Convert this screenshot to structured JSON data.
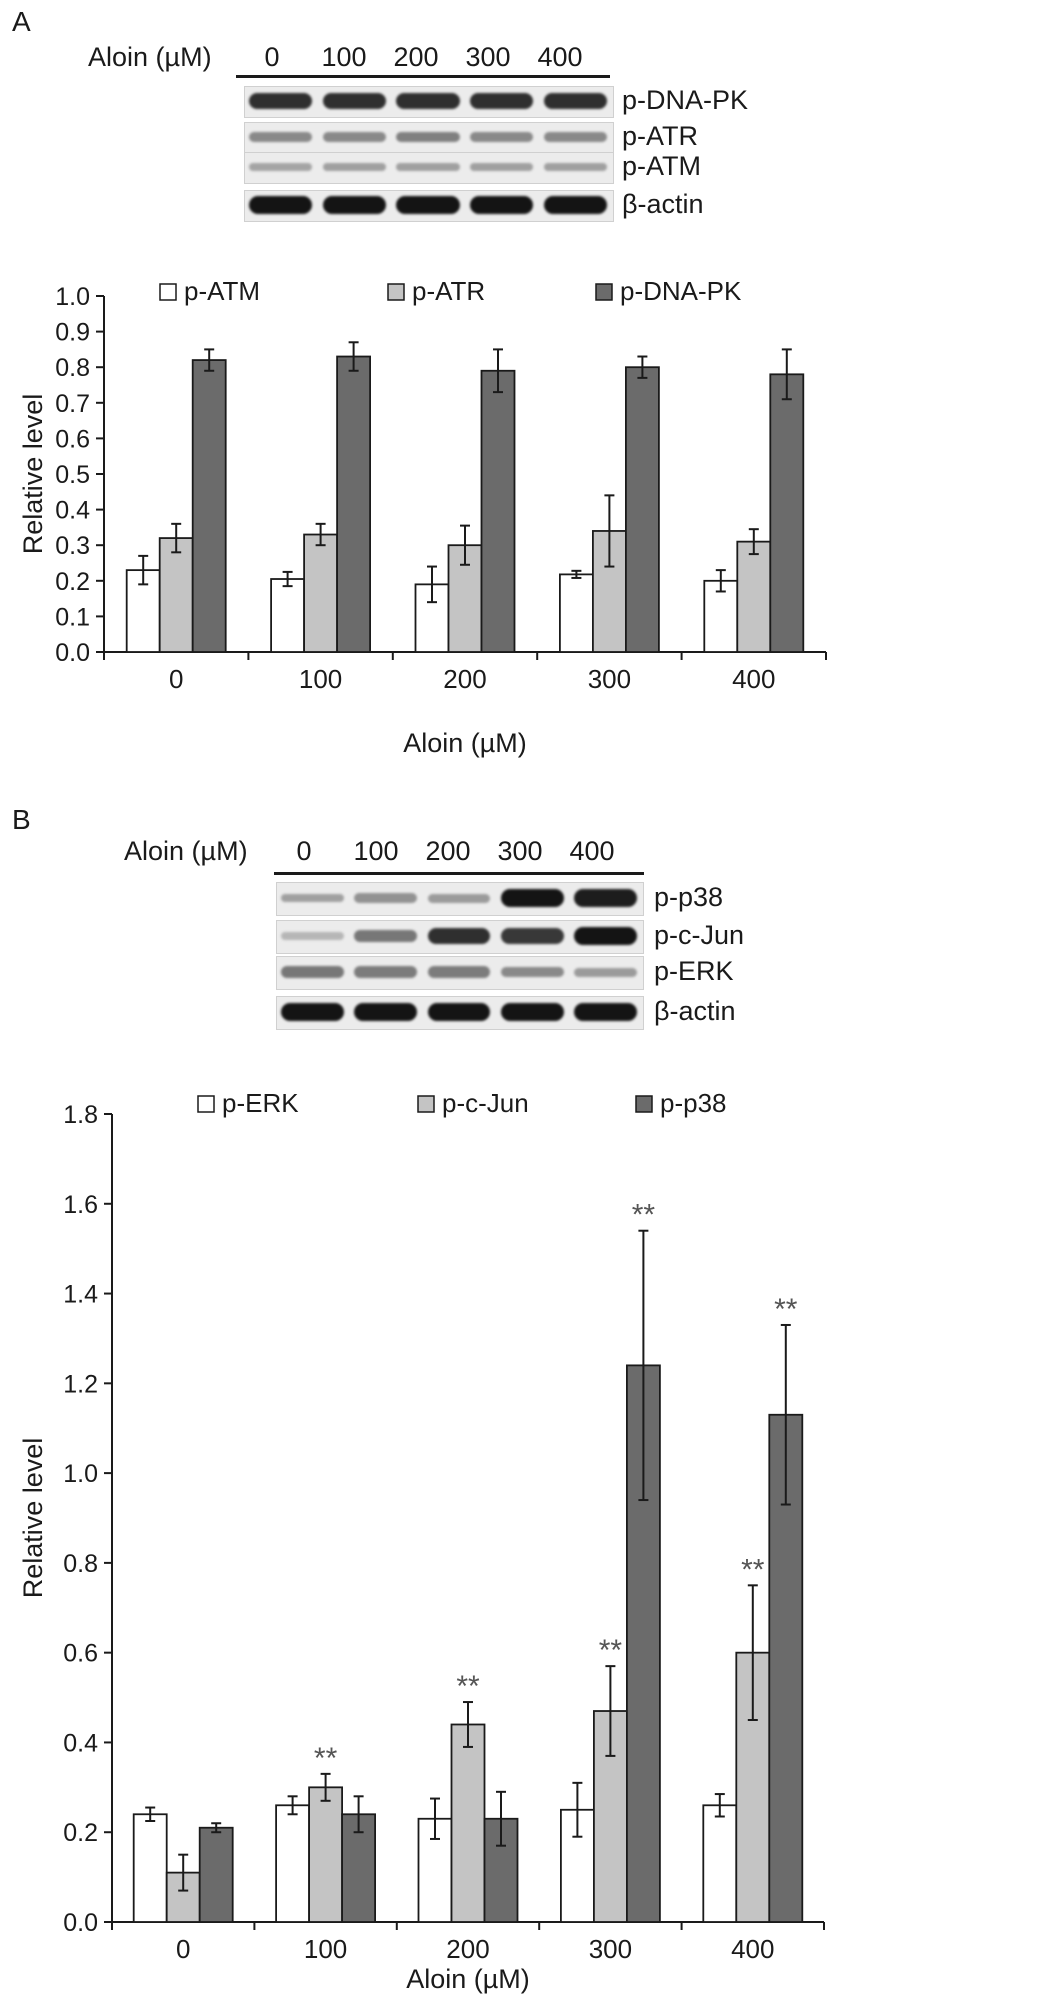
{
  "panels": [
    {
      "label": "A",
      "blot": {
        "title": "Aloin (µM)",
        "concentrations": [
          "0",
          "100",
          "200",
          "300",
          "400"
        ],
        "rows": [
          {
            "protein": "p-DNA-PK",
            "intensities": [
              0.85,
              0.85,
              0.85,
              0.85,
              0.85
            ]
          },
          {
            "protein": "p-ATR",
            "intensities": [
              0.35,
              0.35,
              0.4,
              0.35,
              0.35
            ]
          },
          {
            "protein": "p-ATM",
            "intensities": [
              0.2,
              0.22,
              0.22,
              0.22,
              0.22
            ]
          },
          {
            "protein": "β-actin",
            "intensities": [
              1.0,
              1.0,
              1.0,
              1.0,
              1.0
            ]
          }
        ]
      }
    },
    {
      "label": "B",
      "blot": {
        "title": "Aloin (µM)",
        "concentrations": [
          "0",
          "100",
          "200",
          "300",
          "400"
        ],
        "rows": [
          {
            "protein": "p-p38",
            "intensities": [
              0.22,
              0.3,
              0.25,
              1.0,
              0.95
            ]
          },
          {
            "protein": "p-c-Jun",
            "intensities": [
              0.1,
              0.45,
              0.85,
              0.8,
              1.0
            ]
          },
          {
            "protein": "p-ERK",
            "intensities": [
              0.45,
              0.42,
              0.42,
              0.35,
              0.25
            ]
          },
          {
            "protein": "β-actin",
            "intensities": [
              1.0,
              1.0,
              1.0,
              1.0,
              1.0
            ]
          }
        ]
      }
    }
  ],
  "colors": {
    "white": "#ffffff",
    "lightgray": "#c4c4c4",
    "darkgray": "#6b6b6b",
    "star": "#555555"
  },
  "chart_data": [
    {
      "type": "bar",
      "xlabel": "Aloin (µM)",
      "ylabel": "Relative level",
      "ylim": [
        0,
        1.0
      ],
      "yticks": [
        "0.0",
        "0.1",
        "0.2",
        "0.3",
        "0.4",
        "0.5",
        "0.6",
        "0.7",
        "0.8",
        "0.9",
        "1.0"
      ],
      "categories": [
        "0",
        "100",
        "200",
        "300",
        "400"
      ],
      "legend_position": "top",
      "series": [
        {
          "name": "p-ATM",
          "color": "white",
          "values": [
            0.23,
            0.205,
            0.19,
            0.218,
            0.2
          ],
          "errors": [
            0.04,
            0.02,
            0.05,
            0.01,
            0.03
          ]
        },
        {
          "name": "p-ATR",
          "color": "lightgray",
          "values": [
            0.32,
            0.33,
            0.3,
            0.34,
            0.31
          ],
          "errors": [
            0.04,
            0.03,
            0.055,
            0.1,
            0.035
          ]
        },
        {
          "name": "p-DNA-PK",
          "color": "darkgray",
          "values": [
            0.82,
            0.83,
            0.79,
            0.8,
            0.78
          ],
          "errors": [
            0.03,
            0.04,
            0.06,
            0.03,
            0.07
          ]
        }
      ],
      "annotations": []
    },
    {
      "type": "bar",
      "xlabel": "Aloin (µM)",
      "ylabel": "Relative level",
      "ylim": [
        0,
        1.8
      ],
      "yticks": [
        "0.0",
        "0.2",
        "0.4",
        "0.6",
        "0.8",
        "1.0",
        "1.2",
        "1.4",
        "1.6",
        "1.8"
      ],
      "categories": [
        "0",
        "100",
        "200",
        "300",
        "400"
      ],
      "legend_position": "top",
      "series": [
        {
          "name": "p-ERK",
          "color": "white",
          "values": [
            0.24,
            0.26,
            0.23,
            0.25,
            0.26
          ],
          "errors": [
            0.015,
            0.02,
            0.045,
            0.06,
            0.025
          ]
        },
        {
          "name": "p-c-Jun",
          "color": "lightgray",
          "values": [
            0.11,
            0.3,
            0.44,
            0.47,
            0.6
          ],
          "errors": [
            0.04,
            0.03,
            0.05,
            0.1,
            0.15
          ]
        },
        {
          "name": "p-p38",
          "color": "darkgray",
          "values": [
            0.21,
            0.24,
            0.23,
            1.24,
            1.13
          ],
          "errors": [
            0.01,
            0.04,
            0.06,
            0.3,
            0.2
          ]
        }
      ],
      "annotations": [
        {
          "text": "**",
          "series": 1,
          "category": 1
        },
        {
          "text": "**",
          "series": 1,
          "category": 2
        },
        {
          "text": "**",
          "series": 1,
          "category": 3
        },
        {
          "text": "**",
          "series": 2,
          "category": 3
        },
        {
          "text": "**",
          "series": 1,
          "category": 4
        },
        {
          "text": "**",
          "series": 2,
          "category": 4
        }
      ]
    }
  ]
}
